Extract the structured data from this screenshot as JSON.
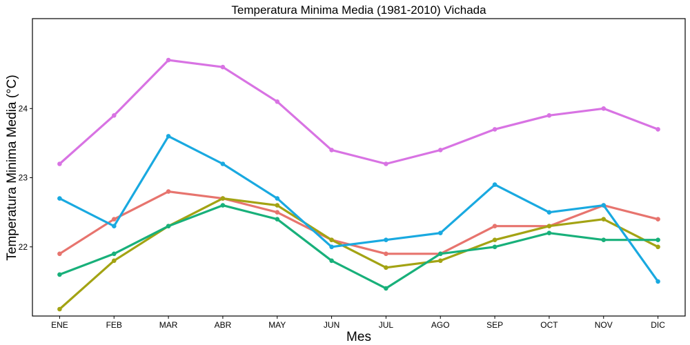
{
  "chart_data": {
    "type": "line",
    "title": "Temperatura Minima Media (1981-2010)  Vichada",
    "xlabel": "Mes",
    "ylabel": "Temperatura Minima Media  (°C)",
    "categories": [
      "ENE",
      "FEB",
      "MAR",
      "ABR",
      "MAY",
      "JUN",
      "JUL",
      "AGO",
      "SEP",
      "OCT",
      "NOV",
      "DIC"
    ],
    "ylim": [
      21.0,
      25.3
    ],
    "yticks": [
      22,
      23,
      24
    ],
    "ytick_labels": [
      "22",
      "23",
      "24"
    ],
    "grid": false,
    "legend": "none",
    "series": [
      {
        "color": "#E7746E",
        "values": [
          21.9,
          22.4,
          22.8,
          22.7,
          22.5,
          22.1,
          21.9,
          21.9,
          22.3,
          22.3,
          22.6,
          22.4
        ]
      },
      {
        "color": "#A3A313",
        "values": [
          21.1,
          21.8,
          22.3,
          22.7,
          22.6,
          22.1,
          21.7,
          21.8,
          22.1,
          22.3,
          22.4,
          22.0
        ]
      },
      {
        "color": "#18B07A",
        "values": [
          21.6,
          21.9,
          22.3,
          22.6,
          22.4,
          21.8,
          21.4,
          21.9,
          22.0,
          22.2,
          22.1,
          22.1
        ]
      },
      {
        "color": "#19A9E0",
        "values": [
          22.7,
          22.3,
          23.6,
          23.2,
          22.7,
          22.0,
          22.1,
          22.2,
          22.9,
          22.5,
          22.6,
          21.5
        ]
      },
      {
        "color": "#D873E3",
        "values": [
          23.2,
          23.9,
          24.7,
          24.6,
          24.1,
          23.4,
          23.2,
          23.4,
          23.7,
          23.9,
          24.0,
          23.7
        ]
      }
    ]
  }
}
